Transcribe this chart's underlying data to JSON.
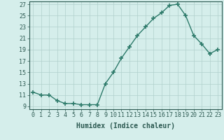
{
  "x": [
    0,
    1,
    2,
    3,
    4,
    5,
    6,
    7,
    8,
    9,
    10,
    11,
    12,
    13,
    14,
    15,
    16,
    17,
    18,
    19,
    20,
    21,
    22,
    23
  ],
  "y": [
    11.5,
    11.0,
    11.0,
    10.0,
    9.5,
    9.5,
    9.3,
    9.3,
    9.3,
    13.0,
    15.0,
    17.5,
    19.5,
    21.5,
    23.0,
    24.5,
    25.5,
    26.8,
    27.0,
    25.0,
    21.5,
    20.0,
    18.3,
    19.0
  ],
  "line_color": "#2d7a6a",
  "marker": "+",
  "marker_size": 4,
  "marker_lw": 1.2,
  "line_width": 1.0,
  "bg_color": "#d5eeeb",
  "grid_color": "#b0d0cc",
  "xlabel": "Humidex (Indice chaleur)",
  "xlim": [
    -0.5,
    23.5
  ],
  "ylim": [
    8.5,
    27.5
  ],
  "yticks": [
    9,
    11,
    13,
    15,
    17,
    19,
    21,
    23,
    25,
    27
  ],
  "xtick_labels": [
    "0",
    "1",
    "2",
    "3",
    "4",
    "5",
    "6",
    "7",
    "8",
    "9",
    "10",
    "11",
    "12",
    "13",
    "14",
    "15",
    "16",
    "17",
    "18",
    "19",
    "20",
    "21",
    "22",
    "23"
  ],
  "font_color": "#2d5a52",
  "tick_font_size": 6,
  "xlabel_font_size": 7
}
